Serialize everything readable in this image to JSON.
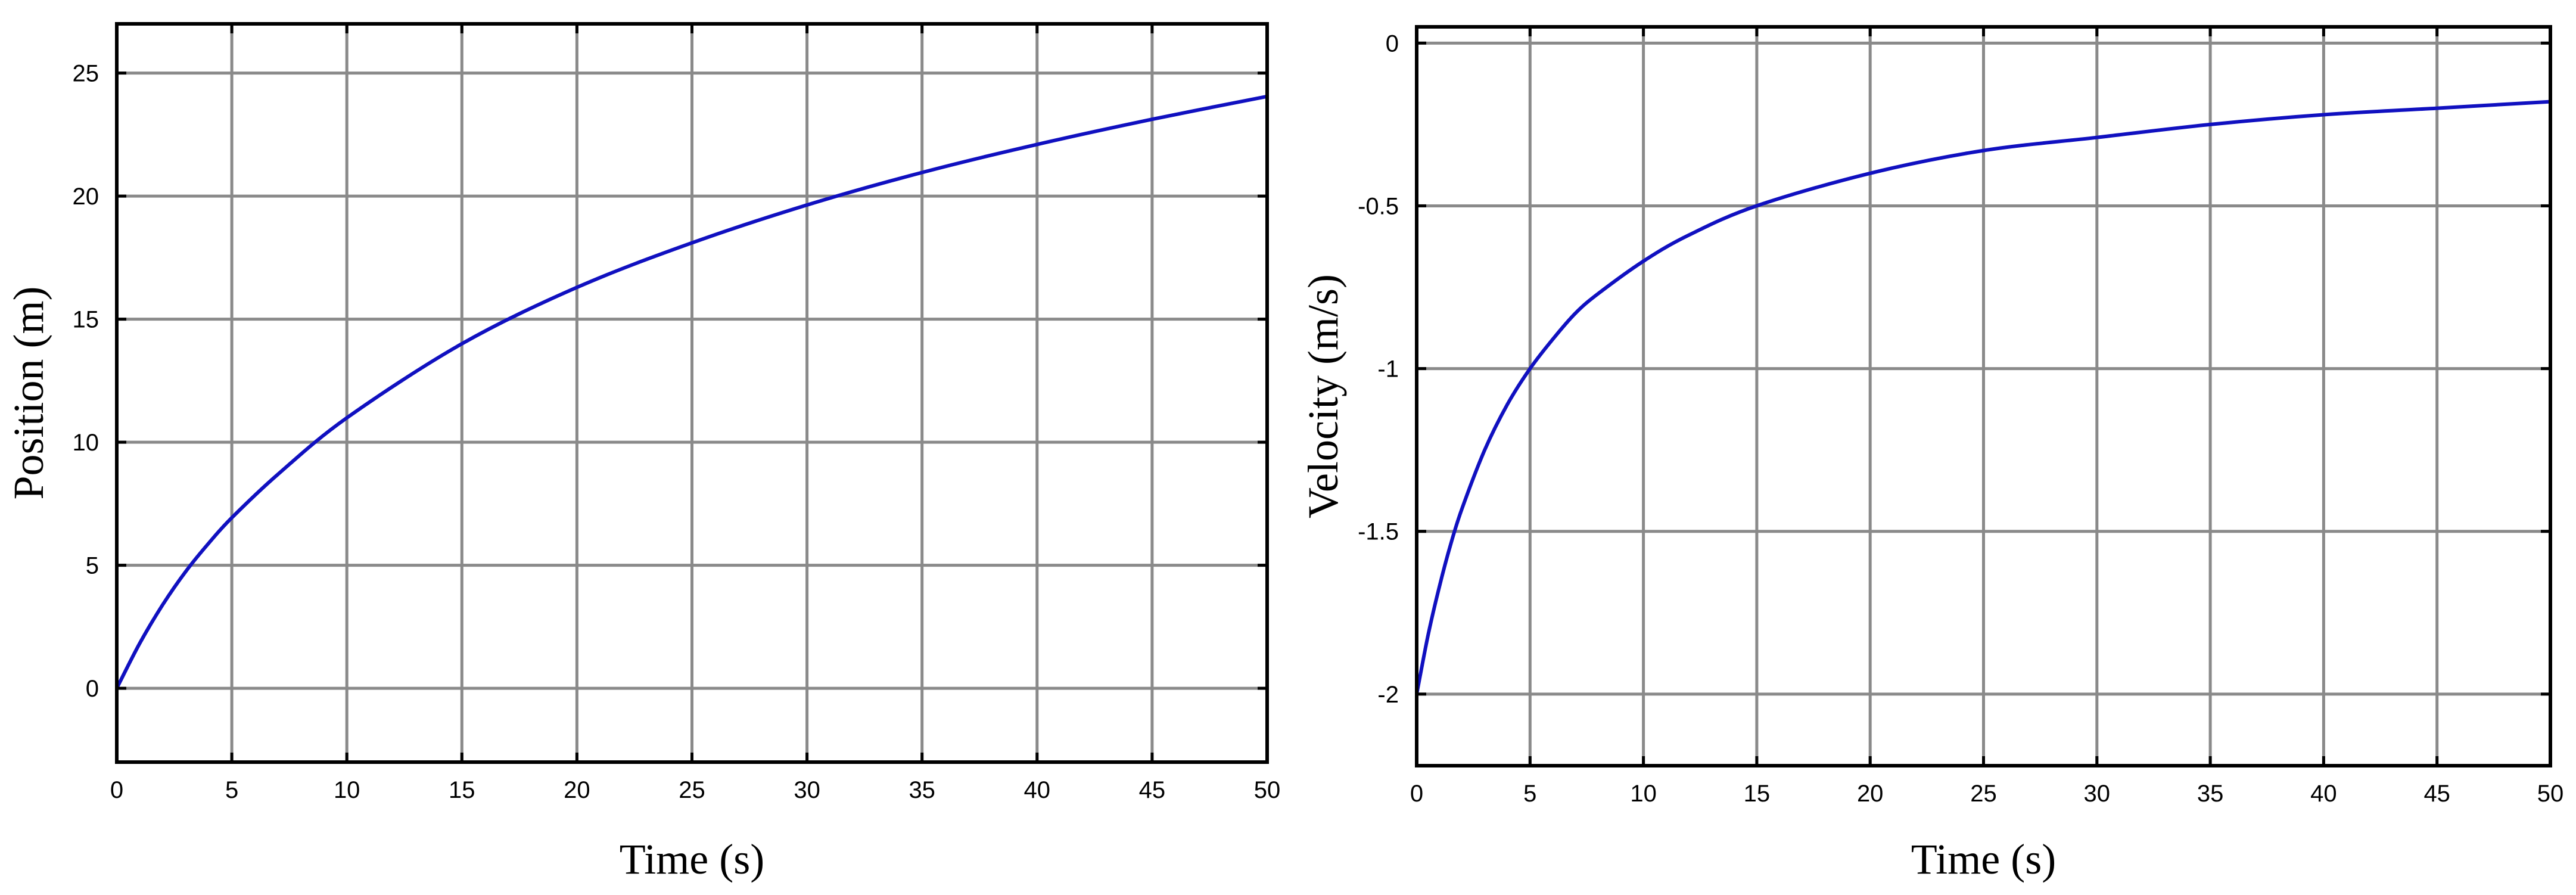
{
  "chart_data": [
    {
      "type": "line",
      "xlabel": "Time (s)",
      "ylabel": "Position (m)",
      "xlim": [
        0,
        50
      ],
      "ylim": [
        -3,
        27
      ],
      "xticks": [
        0,
        5,
        10,
        15,
        20,
        25,
        30,
        35,
        40,
        45,
        50
      ],
      "yticks": [
        0,
        5,
        10,
        15,
        20,
        25
      ],
      "xtick_labels": [
        "0",
        "5",
        "10",
        "15",
        "20",
        "25",
        "30",
        "35",
        "40",
        "45",
        "50"
      ],
      "ytick_labels": [
        "0",
        "5",
        "10",
        "15",
        "20",
        "25"
      ],
      "grid": true,
      "series_color": "#1010c0",
      "x": [
        0,
        1,
        2,
        3,
        4,
        5,
        7,
        10,
        15,
        20,
        25,
        30,
        35,
        40,
        45,
        50
      ],
      "y": [
        0,
        1.83,
        3.4,
        4.75,
        5.9,
        6.93,
        8.69,
        10.99,
        14.0,
        16.29,
        18.1,
        19.64,
        20.96,
        22.1,
        23.12,
        24.05
      ]
    },
    {
      "type": "line",
      "xlabel": "Time (s)",
      "ylabel": "Velocity (m/s)",
      "xlim": [
        0,
        50
      ],
      "ylim": [
        -2.22,
        0.05
      ],
      "xticks": [
        0,
        5,
        10,
        15,
        20,
        25,
        30,
        35,
        40,
        45,
        50
      ],
      "yticks": [
        -2,
        -1.5,
        -1,
        -0.5,
        0
      ],
      "xtick_labels": [
        "0",
        "5",
        "10",
        "15",
        "20",
        "25",
        "30",
        "35",
        "40",
        "45",
        "50"
      ],
      "ytick_labels": [
        "-2",
        "-1.5",
        "-1",
        "-0.5",
        "0"
      ],
      "grid": true,
      "series_color": "#1010c0",
      "x": [
        0,
        0.5,
        1,
        1.5,
        2,
        3,
        4,
        5,
        6,
        7,
        8,
        10,
        12,
        15,
        20,
        25,
        30,
        35,
        40,
        45,
        50
      ],
      "y": [
        -2.0,
        -1.82,
        -1.67,
        -1.54,
        -1.43,
        -1.25,
        -1.11,
        -1.0,
        -0.91,
        -0.83,
        -0.77,
        -0.67,
        -0.59,
        -0.5,
        -0.4,
        -0.33,
        -0.29,
        -0.25,
        -0.22,
        -0.2,
        -0.18
      ]
    }
  ]
}
